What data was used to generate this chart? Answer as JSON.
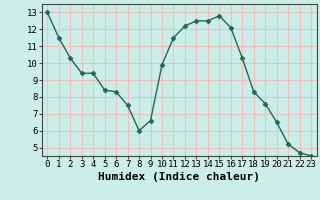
{
  "x": [
    0,
    1,
    2,
    3,
    4,
    5,
    6,
    7,
    8,
    9,
    10,
    11,
    12,
    13,
    14,
    15,
    16,
    17,
    18,
    19,
    20,
    21,
    22,
    23
  ],
  "y": [
    13.0,
    11.5,
    10.3,
    9.4,
    9.4,
    8.4,
    8.3,
    7.5,
    6.0,
    6.6,
    9.9,
    11.5,
    12.2,
    12.5,
    12.5,
    12.8,
    12.1,
    10.3,
    8.3,
    7.6,
    6.5,
    5.2,
    4.7,
    4.5
  ],
  "line_color": "#1a6b5a",
  "marker": "D",
  "marker_size": 2.5,
  "bg_color": "#cceee8",
  "grid_color": "#f0c0c0",
  "xlabel": "Humidex (Indice chaleur)",
  "ylabel": "",
  "xlim": [
    -0.5,
    23.5
  ],
  "ylim": [
    4.5,
    13.5
  ],
  "yticks": [
    5,
    6,
    7,
    8,
    9,
    10,
    11,
    12,
    13
  ],
  "xticks": [
    0,
    1,
    2,
    3,
    4,
    5,
    6,
    7,
    8,
    9,
    10,
    11,
    12,
    13,
    14,
    15,
    16,
    17,
    18,
    19,
    20,
    21,
    22,
    23
  ],
  "xtick_labels": [
    "0",
    "1",
    "2",
    "3",
    "4",
    "5",
    "6",
    "7",
    "8",
    "9",
    "10",
    "11",
    "12",
    "13",
    "14",
    "15",
    "16",
    "17",
    "18",
    "19",
    "20",
    "21",
    "22",
    "23"
  ],
  "tick_fontsize": 6.5,
  "xlabel_fontsize": 8,
  "spine_color": "#444444"
}
